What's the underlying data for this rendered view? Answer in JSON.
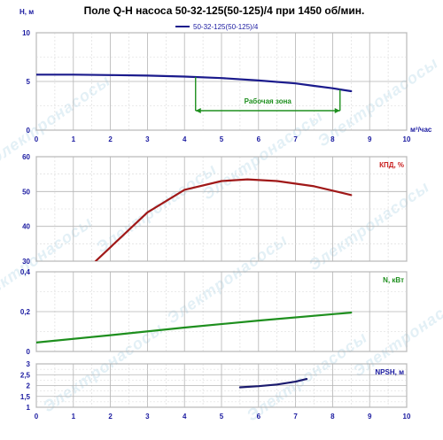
{
  "title": "Поле Q-H насоса 50-32-125(50-125)/4 при 1450 об/мин.",
  "watermark": "Электронасосы",
  "x_axis": {
    "label": "м³/час",
    "min": 0,
    "max": 10,
    "ticks": [
      "0",
      "1",
      "2",
      "3",
      "4",
      "5",
      "6",
      "7",
      "8",
      "9",
      "10"
    ]
  },
  "colors": {
    "axis_text": "#1a1aa0",
    "grid": "#b4b4b4",
    "h_curve": "#1a1a8c",
    "eff_curve": "#a01818",
    "power_curve": "#1e8f1e",
    "npsh_curve": "#1a1a6e",
    "zone": "#1e8f1e",
    "watermark": "#e3f0f6"
  },
  "chart_data": [
    {
      "id": "qh",
      "type": "line",
      "ylabel": "H, м",
      "xlim": [
        0,
        10
      ],
      "ylim": [
        0,
        10
      ],
      "yticks": [
        "0",
        "5",
        "10"
      ],
      "legend": "top-center",
      "series": [
        {
          "name": "50-32-125(50-125)/4",
          "x": [
            0,
            1,
            2,
            3,
            4,
            5,
            6,
            7,
            7.5,
            8,
            8.5
          ],
          "y": [
            5.7,
            5.7,
            5.65,
            5.6,
            5.5,
            5.35,
            5.1,
            4.8,
            4.55,
            4.3,
            4.0
          ]
        }
      ],
      "annotation": {
        "label": "Рабочая зона",
        "x_from": 4.3,
        "x_to": 8.2,
        "y": 2.0
      }
    },
    {
      "id": "eff",
      "type": "line",
      "ylabel": "КПД, %",
      "xlim": [
        0,
        10
      ],
      "ylim": [
        30,
        60
      ],
      "yticks": [
        "30",
        "40",
        "50",
        "60"
      ],
      "series": [
        {
          "x": [
            1.6,
            2,
            3,
            4,
            5,
            5.7,
            6.5,
            7.5,
            8.5
          ],
          "y": [
            30,
            34,
            44,
            50.5,
            53,
            53.5,
            53,
            51.5,
            49
          ]
        }
      ]
    },
    {
      "id": "power",
      "type": "line",
      "ylabel": "N, кВт",
      "xlim": [
        0,
        10
      ],
      "ylim": [
        0,
        0.4
      ],
      "yticks": [
        "0",
        "0,2",
        "0,4"
      ],
      "series": [
        {
          "x": [
            0,
            2,
            4,
            6,
            8.5
          ],
          "y": [
            0.045,
            0.082,
            0.12,
            0.155,
            0.195
          ]
        }
      ]
    },
    {
      "id": "npsh",
      "type": "line",
      "ylabel": "NPSH, м",
      "xlim": [
        0,
        10
      ],
      "ylim": [
        1,
        3
      ],
      "yticks": [
        "1",
        "1,5",
        "2",
        "2,5",
        "3"
      ],
      "series": [
        {
          "x": [
            5.5,
            6,
            6.5,
            7,
            7.3
          ],
          "y": [
            1.92,
            1.97,
            2.05,
            2.18,
            2.3
          ]
        }
      ]
    }
  ]
}
